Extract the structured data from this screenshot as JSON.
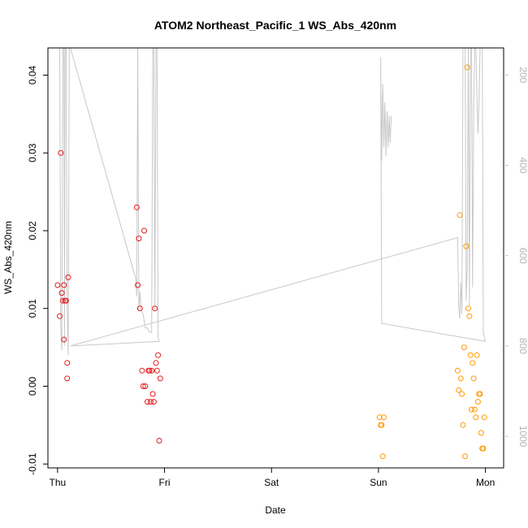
{
  "chart_data": {
    "type": "scatter",
    "title": "ATOM2 Northeast_Pacific_1 WS_Abs_420nm",
    "xlabel": "Date",
    "ylabel": "WS_Abs_420nm",
    "x_tick_labels": [
      "Thu",
      "Fri",
      "Sat",
      "Sun",
      "Mon"
    ],
    "x_range": [
      -0.09,
      4.17
    ],
    "y_range": [
      -0.0105,
      0.0435
    ],
    "y_ticks": [
      -0.01,
      0.0,
      0.01,
      0.02,
      0.03,
      0.04
    ],
    "y_tick_labels": [
      "-0.01",
      "0.00",
      "0.01",
      "0.02",
      "0.03",
      "0.04"
    ],
    "y2_range": [
      1070,
      140
    ],
    "y2_ticks": [
      200,
      400,
      600,
      800,
      1000
    ],
    "y2_tick_labels": [
      "200",
      "400",
      "600",
      "800",
      "1000"
    ],
    "grid": false,
    "series": [
      {
        "color": "#e41a1c",
        "marker": "open-circle",
        "points": [
          [
            0.0,
            0.013
          ],
          [
            0.02,
            0.009
          ],
          [
            0.03,
            0.03
          ],
          [
            0.04,
            0.012
          ],
          [
            0.05,
            0.011
          ],
          [
            0.06,
            0.006
          ],
          [
            0.06,
            0.013
          ],
          [
            0.07,
            0.011
          ],
          [
            0.08,
            0.011
          ],
          [
            0.09,
            0.001
          ],
          [
            0.09,
            0.003
          ],
          [
            0.1,
            0.014
          ],
          [
            0.74,
            0.023
          ],
          [
            0.75,
            0.013
          ],
          [
            0.76,
            0.019
          ],
          [
            0.77,
            0.01
          ],
          [
            0.79,
            0.002
          ],
          [
            0.8,
            0.0
          ],
          [
            0.81,
            0.02
          ],
          [
            0.82,
            0.0
          ],
          [
            0.84,
            -0.002
          ],
          [
            0.85,
            0.002
          ],
          [
            0.86,
            0.002
          ],
          [
            0.87,
            -0.002
          ],
          [
            0.88,
            0.002
          ],
          [
            0.89,
            -0.001
          ],
          [
            0.9,
            -0.002
          ],
          [
            0.91,
            0.01
          ],
          [
            0.92,
            0.003
          ],
          [
            0.93,
            0.002
          ],
          [
            0.94,
            0.004
          ],
          [
            0.95,
            -0.007
          ],
          [
            0.96,
            0.001
          ]
        ]
      },
      {
        "color": "#ff9900",
        "marker": "open-circle",
        "points": [
          [
            3.01,
            -0.004
          ],
          [
            3.02,
            -0.005
          ],
          [
            3.03,
            -0.005
          ],
          [
            3.04,
            -0.009
          ],
          [
            3.05,
            -0.004
          ],
          [
            3.74,
            0.002
          ],
          [
            3.75,
            -0.0005
          ],
          [
            3.76,
            0.022
          ],
          [
            3.77,
            0.001
          ],
          [
            3.78,
            -0.001
          ],
          [
            3.79,
            -0.005
          ],
          [
            3.8,
            0.005
          ],
          [
            3.81,
            -0.009
          ],
          [
            3.82,
            0.018
          ],
          [
            3.83,
            0.041
          ],
          [
            3.84,
            0.01
          ],
          [
            3.85,
            0.009
          ],
          [
            3.86,
            0.004
          ],
          [
            3.87,
            -0.003
          ],
          [
            3.88,
            0.003
          ],
          [
            3.89,
            0.001
          ],
          [
            3.9,
            -0.003
          ],
          [
            3.91,
            -0.004
          ],
          [
            3.92,
            0.004
          ],
          [
            3.93,
            -0.002
          ],
          [
            3.94,
            -0.001
          ],
          [
            3.95,
            -0.001
          ],
          [
            3.96,
            -0.006
          ],
          [
            3.97,
            -0.008
          ],
          [
            3.98,
            -0.008
          ],
          [
            3.99,
            -0.004
          ]
        ]
      }
    ],
    "secondary_line": {
      "color": "#c8c8c8",
      "axis": "right",
      "points": [
        [
          0.0,
          140
        ],
        [
          0.02,
          140
        ],
        [
          0.03,
          760
        ],
        [
          0.04,
          810
        ],
        [
          0.05,
          140
        ],
        [
          0.06,
          140
        ],
        [
          0.065,
          800
        ],
        [
          0.07,
          140
        ],
        [
          0.08,
          140
        ],
        [
          0.09,
          720
        ],
        [
          0.1,
          820
        ],
        [
          0.11,
          140
        ],
        [
          0.12,
          140
        ],
        [
          0.73,
          650
        ],
        [
          0.74,
          690
        ],
        [
          0.75,
          140
        ],
        [
          0.76,
          720
        ],
        [
          0.77,
          680
        ],
        [
          0.78,
          720
        ],
        [
          0.8,
          730
        ],
        [
          0.82,
          760
        ],
        [
          0.84,
          760
        ],
        [
          0.86,
          770
        ],
        [
          0.88,
          770
        ],
        [
          0.89,
          140
        ],
        [
          0.9,
          140
        ],
        [
          0.91,
          720
        ],
        [
          0.92,
          140
        ],
        [
          0.93,
          140
        ],
        [
          0.94,
          780
        ],
        [
          0.95,
          790
        ],
        [
          0.12,
          800
        ],
        [
          3.74,
          560
        ],
        [
          3.75,
          710
        ],
        [
          3.76,
          740
        ],
        [
          3.77,
          660
        ],
        [
          3.78,
          730
        ],
        [
          3.79,
          140
        ],
        [
          3.8,
          140
        ],
        [
          3.81,
          140
        ],
        [
          3.82,
          700
        ],
        [
          3.83,
          620
        ],
        [
          3.84,
          140
        ],
        [
          3.85,
          710
        ],
        [
          3.86,
          140
        ],
        [
          3.87,
          140
        ],
        [
          3.88,
          670
        ],
        [
          3.89,
          280
        ],
        [
          3.9,
          140
        ],
        [
          3.91,
          140
        ],
        [
          3.93,
          330
        ],
        [
          3.94,
          260
        ],
        [
          3.95,
          140
        ],
        [
          3.96,
          140
        ],
        [
          3.97,
          140
        ],
        [
          3.98,
          770
        ],
        [
          3.99,
          780
        ],
        [
          4.0,
          790
        ],
        [
          3.03,
          750
        ],
        [
          3.02,
          160
        ],
        [
          3.03,
          390
        ],
        [
          3.04,
          220
        ],
        [
          3.05,
          360
        ],
        [
          3.06,
          260
        ],
        [
          3.07,
          380
        ],
        [
          3.08,
          280
        ],
        [
          3.09,
          360
        ],
        [
          3.1,
          290
        ],
        [
          3.11,
          350
        ],
        [
          3.12,
          290
        ]
      ]
    }
  }
}
